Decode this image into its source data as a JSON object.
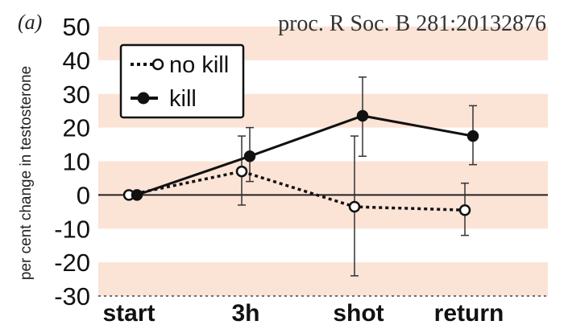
{
  "chart_data": {
    "type": "line",
    "panel_label": "(a)",
    "citation": "proc. R Soc. B 281:20132876",
    "ylabel": "per cent change in testosterone",
    "xlabel": "",
    "categories": [
      "start",
      "3h",
      "shot",
      "return"
    ],
    "ylim": [
      -30,
      50
    ],
    "yticks": [
      50,
      40,
      30,
      20,
      10,
      0,
      -10,
      -20,
      -30
    ],
    "ytick_labels": [
      "50",
      "40",
      "30",
      "20",
      "10",
      "0",
      "-10",
      "-20",
      "-30"
    ],
    "grid": "alternating horizontal bands",
    "band_color": "#fbe3d6",
    "legend_position": "top-left",
    "series": [
      {
        "name": "no kill",
        "style": "dotted",
        "marker": "open-circle",
        "values": [
          0,
          7,
          -3.5,
          -4.5
        ],
        "err_low": [
          0,
          -3,
          -24,
          -12
        ],
        "err_high": [
          0,
          17.5,
          17.5,
          3.5
        ]
      },
      {
        "name": "kill",
        "style": "solid",
        "marker": "filled-circle",
        "values": [
          0,
          11.5,
          23.5,
          17.5
        ],
        "err_low": [
          0,
          4,
          11.5,
          9
        ],
        "err_high": [
          0,
          20,
          35,
          26.5
        ]
      }
    ]
  }
}
